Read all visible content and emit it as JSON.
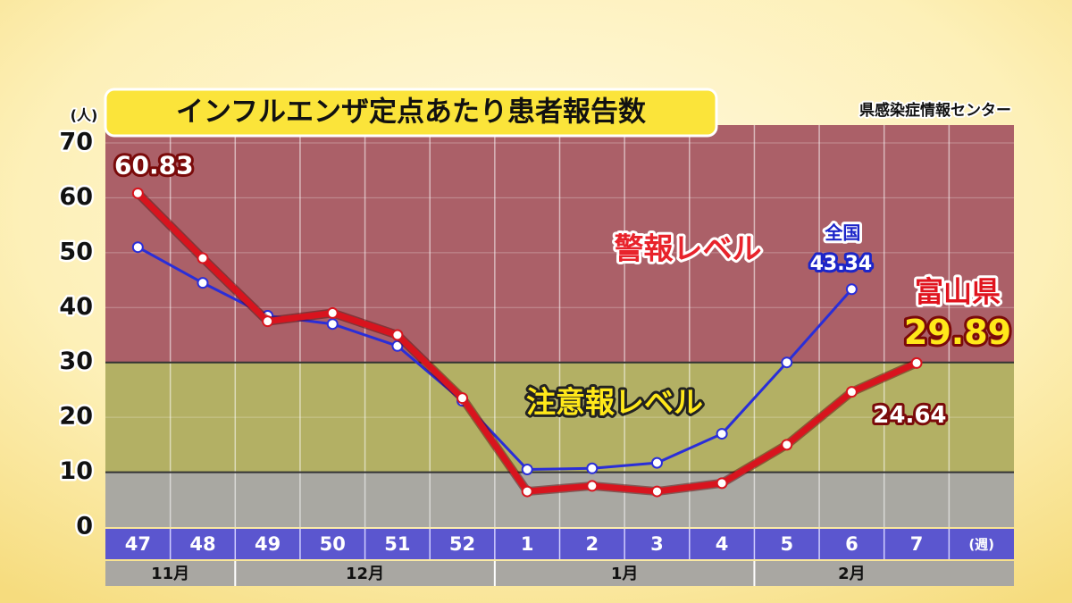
{
  "chart_data": {
    "type": "line",
    "title": "インフルエンザ定点あたり患者報告数",
    "source": "県感染症情報センター",
    "y_unit": "(人)",
    "x_unit": "(週)",
    "categories": [
      "47",
      "48",
      "49",
      "50",
      "51",
      "52",
      "1",
      "2",
      "3",
      "4",
      "5",
      "6",
      "7"
    ],
    "month_groups": [
      {
        "label": "11月",
        "from": "47",
        "to": "48"
      },
      {
        "label": "12月",
        "from": "49",
        "to": "52"
      },
      {
        "label": "1月",
        "from": "1",
        "to": "4"
      },
      {
        "label": "2月",
        "from": "5",
        "to": "7"
      }
    ],
    "bands": [
      {
        "label": "警報レベル",
        "from": 30,
        "to": 70,
        "color": "#ab6068",
        "label_color": "#e8232b"
      },
      {
        "label": "注意報レベル",
        "from": 10,
        "to": 30,
        "color": "#b3b064",
        "label_color": "#ffe81a"
      },
      {
        "from": 0,
        "to": 10,
        "color": "#a9a8a2"
      }
    ],
    "series": [
      {
        "name": "全国",
        "color": "#2a2ed8",
        "values": [
          51,
          44.5,
          38.5,
          37,
          33,
          23,
          10.5,
          10.7,
          11.7,
          17,
          30,
          43.34,
          null
        ]
      },
      {
        "name": "富山県",
        "color": "#d8141e",
        "values": [
          60.83,
          49,
          37.5,
          39,
          35,
          23.5,
          6.5,
          7.5,
          6.5,
          8,
          15,
          24.64,
          29.89
        ]
      }
    ],
    "ylim": [
      0,
      70
    ],
    "yticks": [
      0,
      10,
      20,
      30,
      40,
      50,
      60,
      70
    ],
    "grid": true
  }
}
